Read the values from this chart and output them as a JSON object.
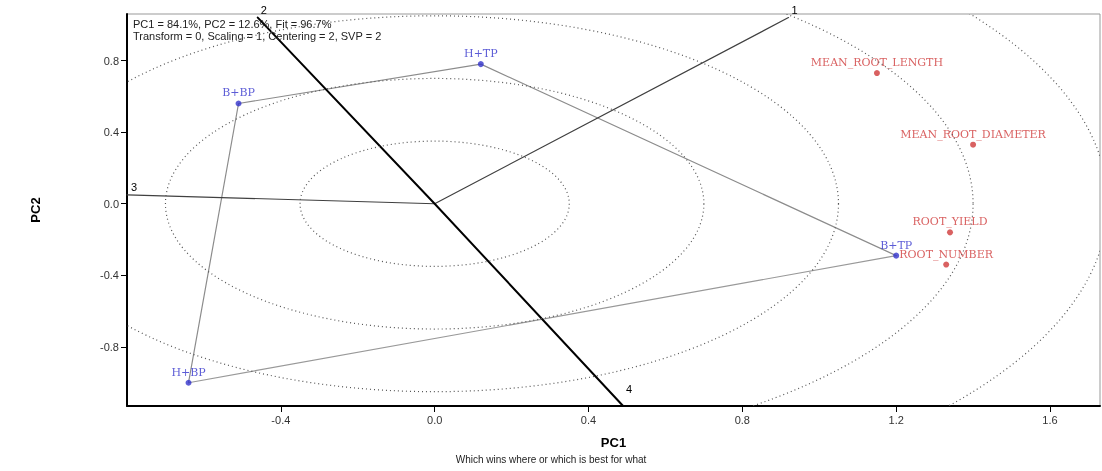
{
  "chart_data": {
    "type": "line",
    "title": "Which wins where or which is best for what",
    "xlabel": "PC1",
    "ylabel": "PC2",
    "annotations": [
      "PC1 = 84.1%, PC2 = 12.6%, Fit = 96.7%",
      "Transform = 0, Scaling = 1, Centering = 2, SVP = 2",
      {
        "text": "1",
        "x": 0.92,
        "y": 1.04
      },
      {
        "text": "2",
        "x": -0.46,
        "y": 1.04
      },
      {
        "text": "3",
        "x": -0.8,
        "y": 0.05
      },
      {
        "text": "4",
        "x": 0.49,
        "y": -1.13
      }
    ],
    "xlim": [
      -0.8,
      1.73
    ],
    "ylim": [
      -1.13,
      1.06
    ],
    "xticks": [
      -0.4,
      {
        "value": 0,
        "label": "0.0"
      },
      0.4,
      0.8,
      1.2,
      1.6
    ],
    "yticks": [
      -0.8,
      -0.4,
      {
        "value": 0,
        "label": "0.0"
      },
      0.4,
      0.8
    ],
    "marker": "none",
    "series": [
      {
        "color": "#8c8c8c",
        "line_style": "solid",
        "x": [
          -0.64,
          -0.51,
          0.12,
          1.2
        ],
        "values": [
          -1.0,
          0.56,
          0.78,
          -0.29
        ]
      },
      {
        "color": "#999999",
        "line_style": "solid",
        "x": [
          -0.64,
          1.2
        ],
        "values": [
          -1.0,
          -0.29
        ]
      },
      {
        "color": "#404040",
        "line_style": "solid",
        "x": [
          -0.8,
          0,
          0.92
        ],
        "values": [
          0.05,
          0,
          1.04
        ]
      },
      {
        "color": "#000000",
        "line_style": "solid",
        "x": [
          -0.46,
          0,
          0.49
        ],
        "values": [
          1.04,
          0,
          -1.13
        ]
      },
      {
        "type": "scatter",
        "marker": "circle",
        "color": "#3333cc",
        "x": [
          0.12,
          -0.51,
          -0.64,
          1.2
        ],
        "values": [
          0.78,
          0.56,
          -1.0,
          -0.29
        ],
        "value_labels": [
          "H+TP",
          "B+BP",
          "H+BP",
          "B+TP"
        ]
      },
      {
        "type": "scatter",
        "marker": "circle",
        "color": "#d03a3a",
        "x": [
          1.15,
          1.4,
          1.34,
          1.33
        ],
        "values": [
          0.73,
          0.33,
          -0.16,
          -0.34
        ],
        "value_labels": [
          "MEAN_ROOT_LENGTH",
          "MEAN_ROOT_DIAMETER",
          "ROOT_YIELD",
          "ROOT_NUMBER"
        ]
      }
    ]
  }
}
